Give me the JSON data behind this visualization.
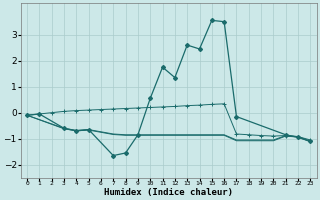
{
  "title": "",
  "xlabel": "Humidex (Indice chaleur)",
  "ylabel": "",
  "background_color": "#cce8e8",
  "grid_color": "#aacccc",
  "line_color": "#1a6b6b",
  "x_labels": [
    "0",
    "1",
    "2",
    "3",
    "4",
    "5",
    "6",
    "7",
    "8",
    "9",
    "10",
    "11",
    "12",
    "13",
    "14",
    "15",
    "16",
    "17",
    "18",
    "19",
    "20",
    "21",
    "22",
    "23"
  ],
  "ylim": [
    -2.5,
    4.2
  ],
  "yticks": [
    -2,
    -1,
    0,
    1,
    2,
    3
  ],
  "xlim": [
    -0.5,
    23.5
  ],
  "main_x": [
    0,
    1,
    3,
    4,
    5,
    7,
    8,
    9,
    10,
    11,
    12,
    13,
    14,
    15,
    16,
    17,
    21,
    22,
    23
  ],
  "main_y": [
    -0.1,
    -0.05,
    -0.6,
    -0.7,
    -0.65,
    -1.65,
    -1.55,
    -0.85,
    0.55,
    1.75,
    1.35,
    2.6,
    2.45,
    3.55,
    3.5,
    -0.15,
    -0.85,
    -0.95,
    -1.1
  ],
  "rising_x": [
    0,
    1,
    2,
    3,
    4,
    5,
    6,
    7,
    8,
    9,
    10,
    11,
    12,
    13,
    14,
    15,
    16,
    17,
    18,
    19,
    20,
    21,
    22,
    23
  ],
  "rising_y": [
    -0.1,
    -0.05,
    0.0,
    0.05,
    0.08,
    0.1,
    0.12,
    0.14,
    0.16,
    0.18,
    0.2,
    0.22,
    0.24,
    0.27,
    0.29,
    0.32,
    0.34,
    -0.82,
    -0.85,
    -0.88,
    -0.9,
    -0.88,
    -0.92,
    -1.05
  ],
  "flat_x": [
    0,
    3,
    4,
    5,
    7,
    8,
    9,
    10,
    11,
    12,
    13,
    14,
    15,
    16,
    17,
    18,
    19,
    20,
    21,
    22,
    23
  ],
  "flat_y": [
    -0.1,
    -0.6,
    -0.68,
    -0.65,
    -0.82,
    -0.85,
    -0.85,
    -0.85,
    -0.85,
    -0.85,
    -0.85,
    -0.85,
    -0.85,
    -0.85,
    -1.05,
    -1.05,
    -1.05,
    -1.05,
    -0.88,
    -0.92,
    -1.1
  ],
  "flat2_x": [
    0,
    3,
    4,
    5,
    7,
    8,
    9,
    10,
    11,
    12,
    13,
    14,
    15,
    16,
    17,
    18,
    19,
    20,
    21,
    22,
    23
  ],
  "flat2_y": [
    -0.1,
    -0.62,
    -0.7,
    -0.67,
    -0.84,
    -0.87,
    -0.87,
    -0.87,
    -0.87,
    -0.87,
    -0.87,
    -0.87,
    -0.87,
    -0.87,
    -1.08,
    -1.08,
    -1.08,
    -1.08,
    -0.9,
    -0.94,
    -1.12
  ]
}
